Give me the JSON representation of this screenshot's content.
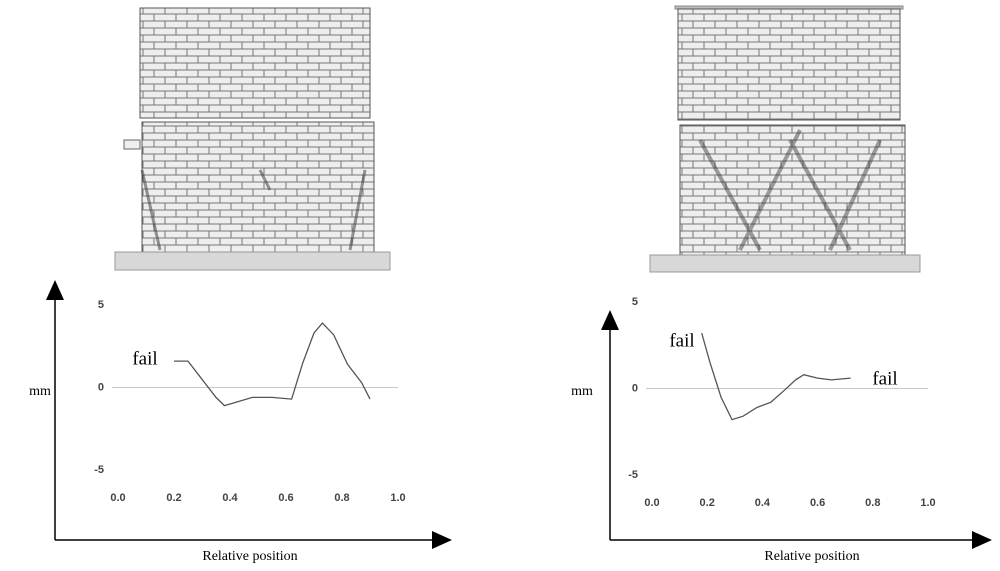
{
  "chart_data": [
    {
      "type": "line",
      "ylabel": "mm",
      "xlabel": "Relative position",
      "annotations": [
        "fail"
      ],
      "x": [
        0.2,
        0.25,
        0.3,
        0.35,
        0.38,
        0.42,
        0.48,
        0.55,
        0.62,
        0.66,
        0.7,
        0.73,
        0.77,
        0.82,
        0.87,
        0.9
      ],
      "values": [
        1.6,
        1.6,
        0.5,
        -0.6,
        -1.1,
        -0.9,
        -0.6,
        -0.6,
        -0.7,
        1.5,
        3.3,
        3.9,
        3.2,
        1.4,
        0.3,
        -0.7
      ],
      "color": "#555555",
      "xlim": [
        0,
        1
      ],
      "xticks": [
        {
          "value": 0,
          "label": "0.0"
        },
        0.2,
        0.4,
        0.6,
        0.8,
        {
          "value": 1,
          "label": "1.0"
        }
      ],
      "ylim": [
        -5,
        5
      ],
      "yticks": [
        5,
        0,
        -5
      ],
      "hline": 0
    },
    {
      "type": "line",
      "ylabel": "mm",
      "xlabel": "Relative position",
      "annotations": [
        "fail",
        "fail"
      ],
      "x": [
        0.18,
        0.21,
        0.25,
        0.29,
        0.33,
        0.38,
        0.43,
        0.48,
        0.52,
        0.55,
        0.6,
        0.65,
        0.72
      ],
      "values": [
        3.2,
        1.5,
        -0.5,
        -1.8,
        -1.6,
        -1.1,
        -0.8,
        -0.1,
        0.5,
        0.8,
        0.6,
        0.5,
        0.6
      ],
      "color": "#555555",
      "xlim": [
        0,
        1
      ],
      "xticks": [
        {
          "value": 0,
          "label": "0.0"
        },
        0.2,
        0.4,
        0.6,
        0.8,
        {
          "value": 1,
          "label": "1.0"
        }
      ],
      "ylim": [
        -5,
        5
      ],
      "yticks": [
        5,
        0,
        -5
      ],
      "hline": 0
    }
  ]
}
